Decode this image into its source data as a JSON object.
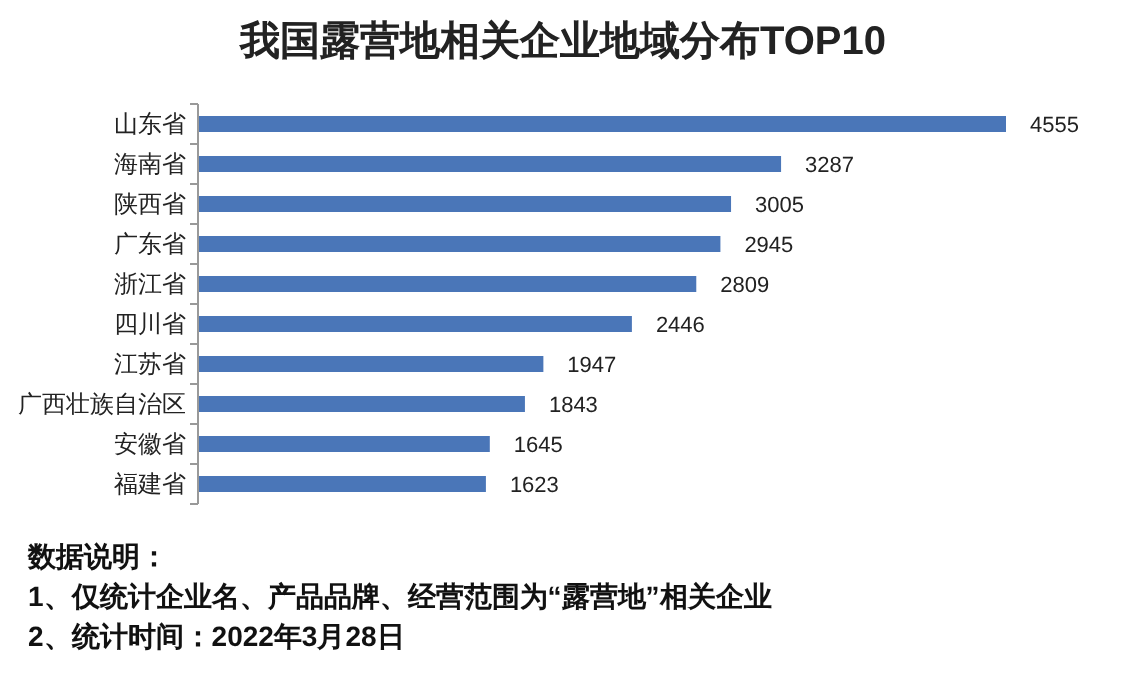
{
  "chart_data": {
    "type": "bar",
    "orientation": "horizontal",
    "title": "我国露营地相关企业地域分布TOP10",
    "categories": [
      "山东省",
      "海南省",
      "陕西省",
      "广东省",
      "浙江省",
      "四川省",
      "江苏省",
      "广西壮族自治区",
      "安徽省",
      "福建省"
    ],
    "values": [
      4555,
      3287,
      3005,
      2945,
      2809,
      2446,
      1947,
      1843,
      1645,
      1623
    ],
    "color": "#4a76b8",
    "data_labels": true,
    "annotations": [
      "数据说明：",
      "1、仅统计企业名、产品品牌、经营范围为“露营地”相关企业",
      "2、统计时间：2022年3月28日"
    ]
  }
}
